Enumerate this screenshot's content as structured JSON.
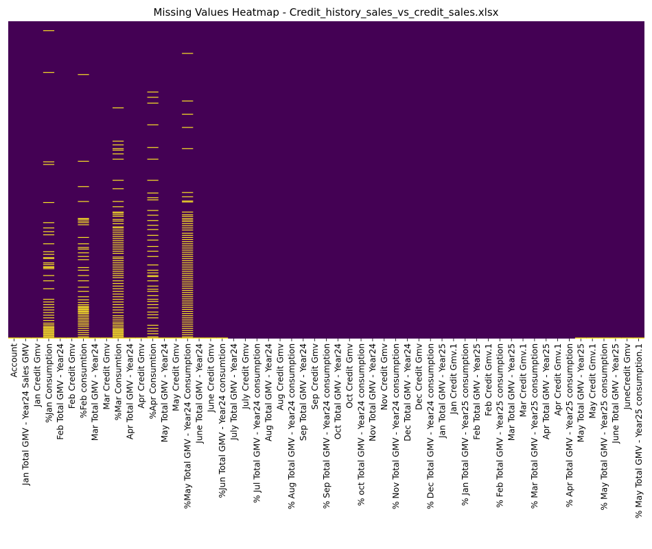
{
  "chart_data": {
    "type": "heatmap",
    "title": "Missing Values Heatmap - Credit_history_sales_vs_credit_sales.xlsx",
    "xlabel": "",
    "ylabel": "",
    "y_ticks_visible": false,
    "colors": {
      "present": "#440154",
      "missing": "#fde725"
    },
    "n_rows": 600,
    "columns": [
      "Account",
      "Jan Total GMV - Year24 Sales GMV",
      "Jan Credit Gmv",
      "%Jan Consumption",
      "Feb Total GMV - Year24",
      "Feb Credit Gmv",
      "%Feb consumtion",
      "Mar Total GMV - Year24",
      "Mar Credit Gmv",
      "%Mar Consumtion",
      "Apr Total GMV - Year24",
      "Apr Credit Gmv",
      "%Apr Consumtion",
      "May Total GMV - Year24",
      "May Credit Gmv",
      "%May Total GMV - Year24 Consumption",
      "June Total GMV - Year24",
      "June Credit Gmv",
      "%Jun Total GMV - Year24 consumtion",
      "July Total GMV - Year24",
      "July Credit Gmv",
      "% Jul Total GMV - Year24 consumption",
      "Aug Total GMV - Year24",
      "Aug Credit Gmv",
      "% Aug Total GMV - Year24 consumption",
      "Sep Total GMV - Year24",
      "Sep Credit Gmv",
      "% Sep Total GMV - Year24 consumption",
      "Oct Total GMV - Year24",
      "Oct Credit Gmv",
      "% oct Total GMV - Year24 consumption",
      "Nov Total GMV - Year24",
      "Nov Credit Gmv",
      "% Nov Total GMV - Year24 consumption",
      "Dec Total GMV - Year24",
      "Dec Credit Gmv",
      "% Dec Total GMV - Year24 consumption",
      "Jan Total GMV - Year25",
      "Jan Credit Gmv.1",
      "% Jan Total GMV - Year25 consumption",
      "Feb Total GMV - Year25",
      "Feb Credit Gmv.1",
      "% Feb Total GMV - Year25 consumption",
      "Mar Total GMV - Year25",
      "Mar Credit Gmv.1",
      "% Mar Total GMV - Year25 consumption",
      "Apr Total GMV - Year25",
      "Apr Credit Gmv.1",
      "% Apr Total GMV - Year25 consumption",
      "May Total GMV - Year25",
      "May Credit Gmv.1",
      "% May Total GMV - Year25 consumption",
      "June Total GMV - Year25",
      "JuneCredit Gmv",
      "% May Total GMV - Year25 consumption.1"
    ],
    "missing_rows": {
      "3": [
        17,
        96,
        265,
        270,
        342,
        380,
        390,
        397,
        403,
        420,
        435,
        440,
        446,
        448,
        456,
        459,
        463,
        465,
        467,
        480,
        490,
        505,
        525,
        530,
        535,
        540,
        545,
        550,
        555,
        560,
        565,
        570,
        573,
        576,
        578,
        580,
        582,
        584,
        586,
        588,
        590,
        592,
        594,
        596,
        598
      ],
      "6": [
        100,
        264,
        312,
        340,
        372,
        374,
        377,
        380,
        384,
        408,
        420,
        427,
        430,
        437,
        444,
        450,
        465,
        470,
        480,
        490,
        502,
        510,
        520,
        526,
        531,
        535,
        538,
        540,
        542,
        544,
        546,
        548,
        550,
        552,
        555,
        558,
        561,
        564,
        567,
        570,
        573,
        576,
        580,
        584,
        588,
        592,
        596
      ],
      "9": [
        163,
        226,
        233,
        240,
        243,
        250,
        260,
        300,
        316,
        340,
        350,
        360,
        362,
        365,
        368,
        374,
        377,
        382,
        388,
        390,
        394,
        398,
        402,
        406,
        410,
        414,
        418,
        422,
        426,
        430,
        434,
        438,
        445,
        448,
        452,
        456,
        460,
        464,
        468,
        472,
        476,
        480,
        484,
        490,
        495,
        500,
        505,
        510,
        515,
        520,
        525,
        530,
        535,
        540,
        545,
        550,
        556,
        560,
        564,
        568,
        571,
        574,
        577,
        580,
        582,
        584,
        586,
        588,
        590,
        592,
        594,
        596
      ],
      "12": [
        133,
        143,
        154,
        195,
        238,
        260,
        300,
        324,
        333,
        337,
        357,
        366,
        376,
        385,
        393,
        404,
        413,
        425,
        434,
        444,
        460,
        470,
        475,
        480,
        482,
        490,
        500,
        506,
        510,
        518,
        525,
        529,
        535,
        541,
        549,
        554,
        560,
        574,
        580,
        585,
        590,
        596
      ],
      "15": [
        60,
        150,
        175,
        200,
        240,
        323,
        331,
        339,
        341,
        360,
        365,
        368,
        372,
        375,
        378,
        382,
        386,
        390,
        394,
        400,
        404,
        408,
        412,
        416,
        420,
        424,
        428,
        432,
        436,
        440,
        444,
        448,
        452,
        456,
        460,
        464,
        468,
        472,
        476,
        480,
        484,
        488,
        492,
        496,
        500,
        504,
        508,
        512,
        516,
        520,
        524,
        528,
        532,
        536,
        540,
        544,
        548,
        552,
        556,
        560,
        564,
        568,
        572,
        576,
        580,
        584,
        588,
        592,
        596
      ],
      "all_last_row": [
        0,
        1,
        2,
        3,
        4,
        5,
        6,
        7,
        8,
        9,
        10,
        11,
        12,
        13,
        14,
        15,
        16,
        17,
        18,
        49,
        50,
        51,
        52,
        53,
        54
      ]
    }
  }
}
